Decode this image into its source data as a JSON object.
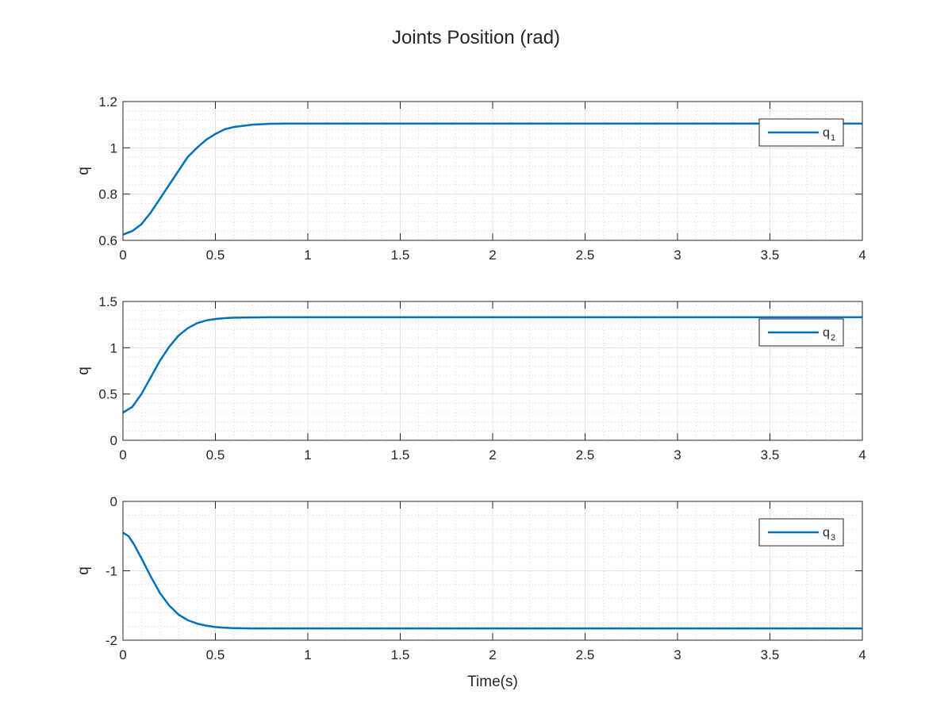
{
  "chart_data": {
    "type": "line",
    "title": "Joints Position (rad)",
    "grid": true,
    "minor_grid": true,
    "legend_placement": "top-right",
    "line_color": "#0072BD",
    "xlabel": "Time(s)",
    "xlim": [
      0,
      4
    ],
    "xticks": [
      0,
      0.5,
      1,
      1.5,
      2,
      2.5,
      3,
      3.5,
      4
    ],
    "xtick_labels": [
      "0",
      "0.5",
      "1",
      "1.5",
      "2",
      "2.5",
      "3",
      "3.5",
      "4"
    ],
    "subplots": [
      {
        "ylabel": "q",
        "ylim": [
          0.6,
          1.2
        ],
        "yticks": [
          0.6,
          0.8,
          1,
          1.2
        ],
        "ytick_labels": [
          "0.6",
          "0.8",
          "1",
          "1.2"
        ],
        "legend": {
          "base": "q",
          "sub": "1"
        },
        "series": {
          "x": [
            0,
            0.05,
            0.1,
            0.15,
            0.2,
            0.25,
            0.3,
            0.35,
            0.4,
            0.45,
            0.5,
            0.55,
            0.6,
            0.7,
            0.8,
            0.9,
            1,
            1.5,
            2,
            2.5,
            3,
            3.5,
            4
          ],
          "y": [
            0.625,
            0.64,
            0.67,
            0.72,
            0.78,
            0.84,
            0.9,
            0.96,
            1.0,
            1.035,
            1.06,
            1.08,
            1.09,
            1.1,
            1.104,
            1.105,
            1.105,
            1.105,
            1.105,
            1.105,
            1.105,
            1.105,
            1.105
          ]
        }
      },
      {
        "ylabel": "q",
        "ylim": [
          0,
          1.5
        ],
        "yticks": [
          0,
          0.5,
          1,
          1.5
        ],
        "ytick_labels": [
          "0",
          "0.5",
          "1",
          "1.5"
        ],
        "legend": {
          "base": "q",
          "sub": "2"
        },
        "series": {
          "x": [
            0,
            0.05,
            0.1,
            0.15,
            0.2,
            0.25,
            0.3,
            0.35,
            0.4,
            0.45,
            0.5,
            0.55,
            0.6,
            0.7,
            0.8,
            0.9,
            1,
            1.5,
            2,
            2.5,
            3,
            3.5,
            4
          ],
          "y": [
            0.3,
            0.36,
            0.5,
            0.68,
            0.86,
            1.01,
            1.13,
            1.21,
            1.265,
            1.295,
            1.31,
            1.32,
            1.325,
            1.328,
            1.33,
            1.33,
            1.33,
            1.33,
            1.33,
            1.33,
            1.33,
            1.33,
            1.33
          ]
        }
      },
      {
        "ylabel": "q",
        "ylim": [
          -2,
          0
        ],
        "yticks": [
          -2,
          -1,
          0
        ],
        "ytick_labels": [
          "-2",
          "-1",
          "0"
        ],
        "legend": {
          "base": "q",
          "sub": "3"
        },
        "series": {
          "x": [
            0,
            0.03,
            0.06,
            0.1,
            0.15,
            0.2,
            0.25,
            0.3,
            0.35,
            0.4,
            0.45,
            0.5,
            0.55,
            0.6,
            0.7,
            0.8,
            0.9,
            1,
            1.5,
            2,
            2.5,
            3,
            3.5,
            4
          ],
          "y": [
            -0.45,
            -0.5,
            -0.62,
            -0.82,
            -1.08,
            -1.32,
            -1.5,
            -1.63,
            -1.71,
            -1.76,
            -1.79,
            -1.81,
            -1.82,
            -1.825,
            -1.83,
            -1.83,
            -1.83,
            -1.83,
            -1.83,
            -1.83,
            -1.83,
            -1.83,
            -1.83,
            -1.83
          ]
        }
      }
    ]
  }
}
